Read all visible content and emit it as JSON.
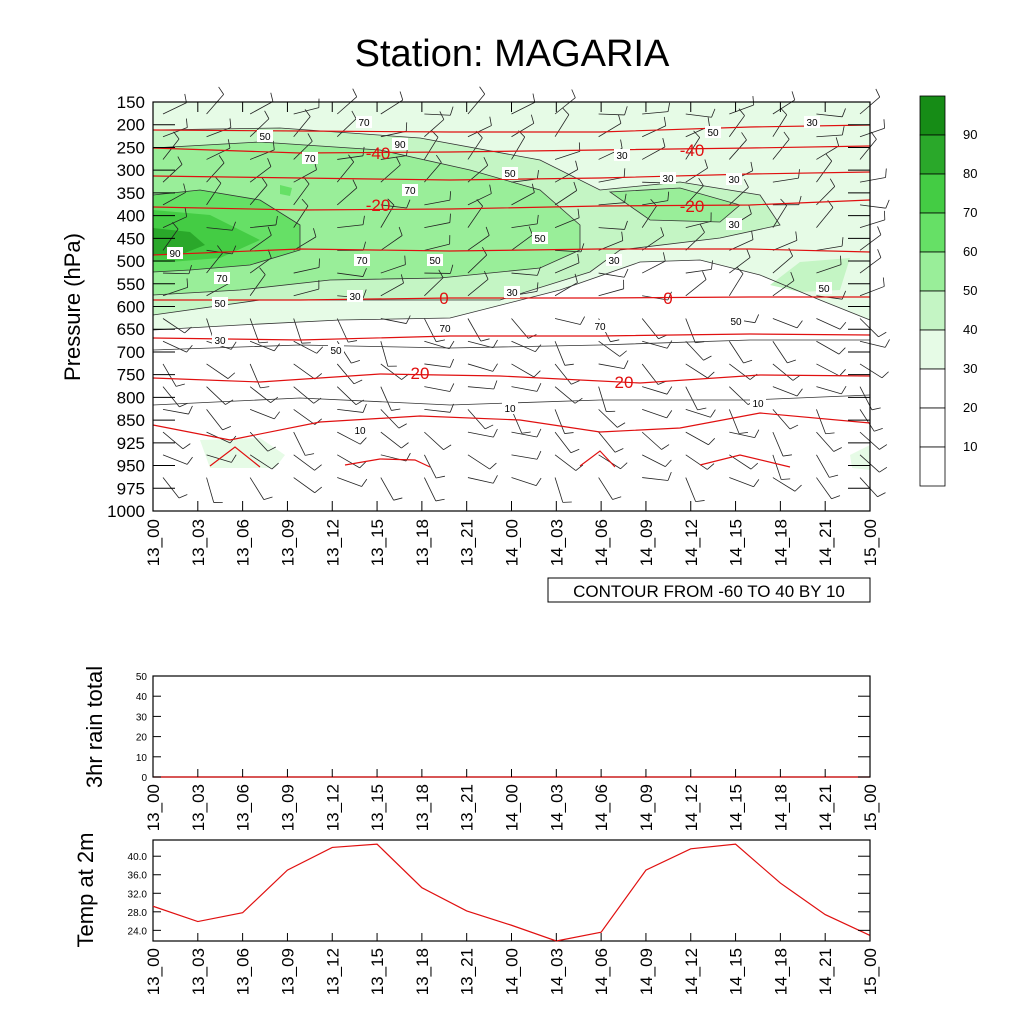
{
  "title": "Station: MAGARIA",
  "colors": {
    "temperature_contour": "#e01010",
    "humidity_fill": [
      "#ffffff",
      "#ffffff",
      "#ffffff",
      "#e6fbe6",
      "#c4f5c4",
      "#99ee99",
      "#66e066",
      "#44cc44",
      "#2aa82a",
      "#168c16"
    ],
    "plot_line": "#e01010"
  },
  "chart_data": [
    {
      "type": "heatmap",
      "description_kind": "time-pressure cross section (filled RH contours, red temperature contours, wind barbs)",
      "ylabel": "Pressure (hPa)",
      "y_ticks": [
        "150",
        "200",
        "250",
        "300",
        "350",
        "400",
        "450",
        "500",
        "550",
        "600",
        "650",
        "700",
        "750",
        "800",
        "850",
        "925",
        "950",
        "975",
        "1000"
      ],
      "x_ticks": [
        "13_00",
        "13_03",
        "13_06",
        "13_09",
        "13_12",
        "13_15",
        "13_18",
        "13_21",
        "14_00",
        "14_03",
        "14_06",
        "14_09",
        "14_12",
        "14_15",
        "14_18",
        "14_21",
        "15_00"
      ],
      "colorbar_labels": [
        "10",
        "20",
        "30",
        "40",
        "50",
        "60",
        "70",
        "80",
        "90"
      ],
      "info_label": "CONTOUR FROM -60 TO 40 BY 10",
      "temperature_contour_labels": [
        "-40",
        "-40",
        "-20",
        "-20",
        "0",
        "0",
        "20",
        "20"
      ],
      "rh_contour_labels": [
        "50",
        "90",
        "70",
        "70",
        "50",
        "30",
        "70",
        "50",
        "90",
        "70",
        "70",
        "50",
        "50",
        "30",
        "30",
        "30",
        "30",
        "50",
        "70",
        "70",
        "50",
        "30",
        "50",
        "30",
        "50",
        "30",
        "30",
        "10",
        "10",
        "10"
      ]
    },
    {
      "type": "line",
      "ylabel": "3hr rain total",
      "x": [
        "13_00",
        "13_03",
        "13_06",
        "13_09",
        "13_12",
        "13_15",
        "13_18",
        "13_21",
        "14_00",
        "14_03",
        "14_06",
        "14_09",
        "14_12",
        "14_15",
        "14_18",
        "14_21",
        "15_00"
      ],
      "y_ticks": [
        "0",
        "10",
        "20",
        "30",
        "40",
        "50"
      ],
      "ylim": [
        0,
        50
      ],
      "series": [
        {
          "values": [
            0,
            0,
            0,
            0,
            0,
            0,
            0,
            0,
            0,
            0,
            0,
            0,
            0,
            0,
            0,
            0,
            0
          ]
        }
      ]
    },
    {
      "type": "line",
      "ylabel": "Temp at 2m",
      "x": [
        "13_00",
        "13_03",
        "13_06",
        "13_09",
        "13_12",
        "13_15",
        "13_18",
        "13_21",
        "14_00",
        "14_03",
        "14_06",
        "14_09",
        "14_12",
        "14_15",
        "14_18",
        "14_21",
        "15_00"
      ],
      "y_ticks": [
        "24.0",
        "28.0",
        "32.0",
        "36.0",
        "40.0"
      ],
      "ylim": [
        21.7,
        43.5
      ],
      "series": [
        {
          "values": [
            29.2,
            25.9,
            27.8,
            37.0,
            41.9,
            42.6,
            33.2,
            28.2,
            25.1,
            21.7,
            23.6,
            37.0,
            41.6,
            42.6,
            34.2,
            27.4,
            22.9
          ]
        }
      ]
    }
  ]
}
